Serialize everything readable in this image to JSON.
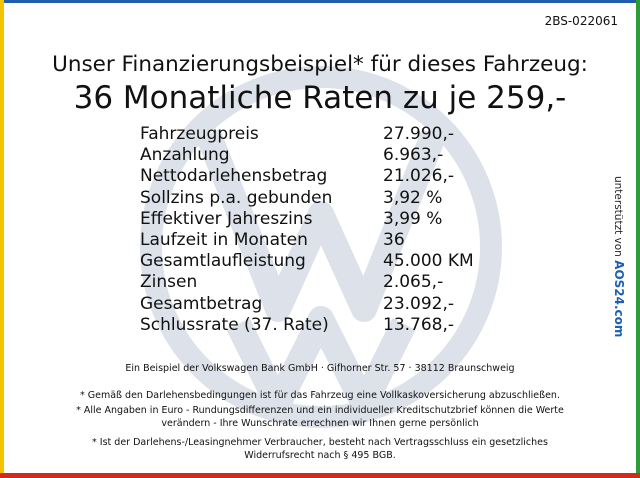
{
  "header": {
    "code": "2BS-022061",
    "title": "Unser Finanzierungsbeispiel* für dieses Fahrzeug:",
    "headline": "36 Monatliche Raten zu je 259,-"
  },
  "table": {
    "rows": [
      [
        "Fahrzeugpreis",
        "27.990,-"
      ],
      [
        "Anzahlung",
        "6.963,-"
      ],
      [
        "Nettodarlehensbetrag",
        "21.026,-"
      ],
      [
        "Sollzins p.a. gebunden",
        "3,92 %"
      ],
      [
        "Effektiver Jahreszins",
        "3,99 %"
      ],
      [
        "Laufzeit in Monaten",
        "36"
      ],
      [
        "Gesamtlaufleistung",
        "45.000 KM"
      ],
      [
        "Zinsen",
        "2.065,-"
      ],
      [
        "Gesamtbetrag",
        "23.092,-"
      ],
      [
        "Schlussrate (37. Rate)",
        "13.768,-"
      ]
    ]
  },
  "sidebar": {
    "text": "unterstützt von",
    "brand": "AOS24.com"
  },
  "footer": {
    "lines": [
      "Ein Beispiel der Volkswagen Bank GmbH · Gifhorner Str. 57 · 38112 Braunschweig",
      "* Gemäß den Darlehensbedingungen ist für das Fahrzeug eine Vollkaskoversicherung abzuschließen.",
      "* Alle Angaben in Euro - Rundungsdifferenzen und ein individueller Kreditschutzbrief können die Werte",
      "verändern - Ihre Wunschrate errechnen wir Ihnen gerne persönlich",
      "* Ist der Darlehens-/Leasingnehmer Verbraucher, besteht nach Vertragsschluss ein gesetzliches",
      "Widerrufsrecht nach § 495 BGB."
    ]
  }
}
